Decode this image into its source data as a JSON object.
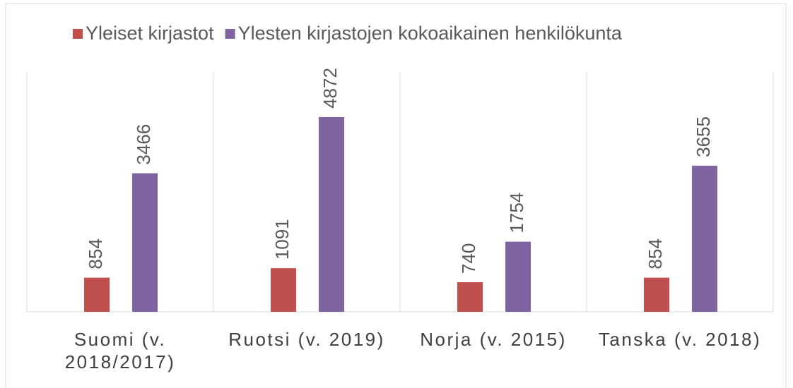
{
  "chart_data": {
    "type": "bar",
    "categories": [
      "Suomi (v. 2018/2017)",
      "Ruotsi (v. 2019)",
      "Norja (v. 2015)",
      "Tanska (v. 2018)"
    ],
    "series": [
      {
        "name": "Yleiset kirjastot",
        "color": "#c0504d",
        "values": [
          854,
          1091,
          740,
          854
        ]
      },
      {
        "name": "Ylesten kirjastojen kokoaikainen henkilökunta",
        "color": "#8064a2",
        "values": [
          3466,
          4872,
          1754,
          3655
        ]
      }
    ],
    "ylim": [
      0,
      6000
    ],
    "legend": "top"
  }
}
